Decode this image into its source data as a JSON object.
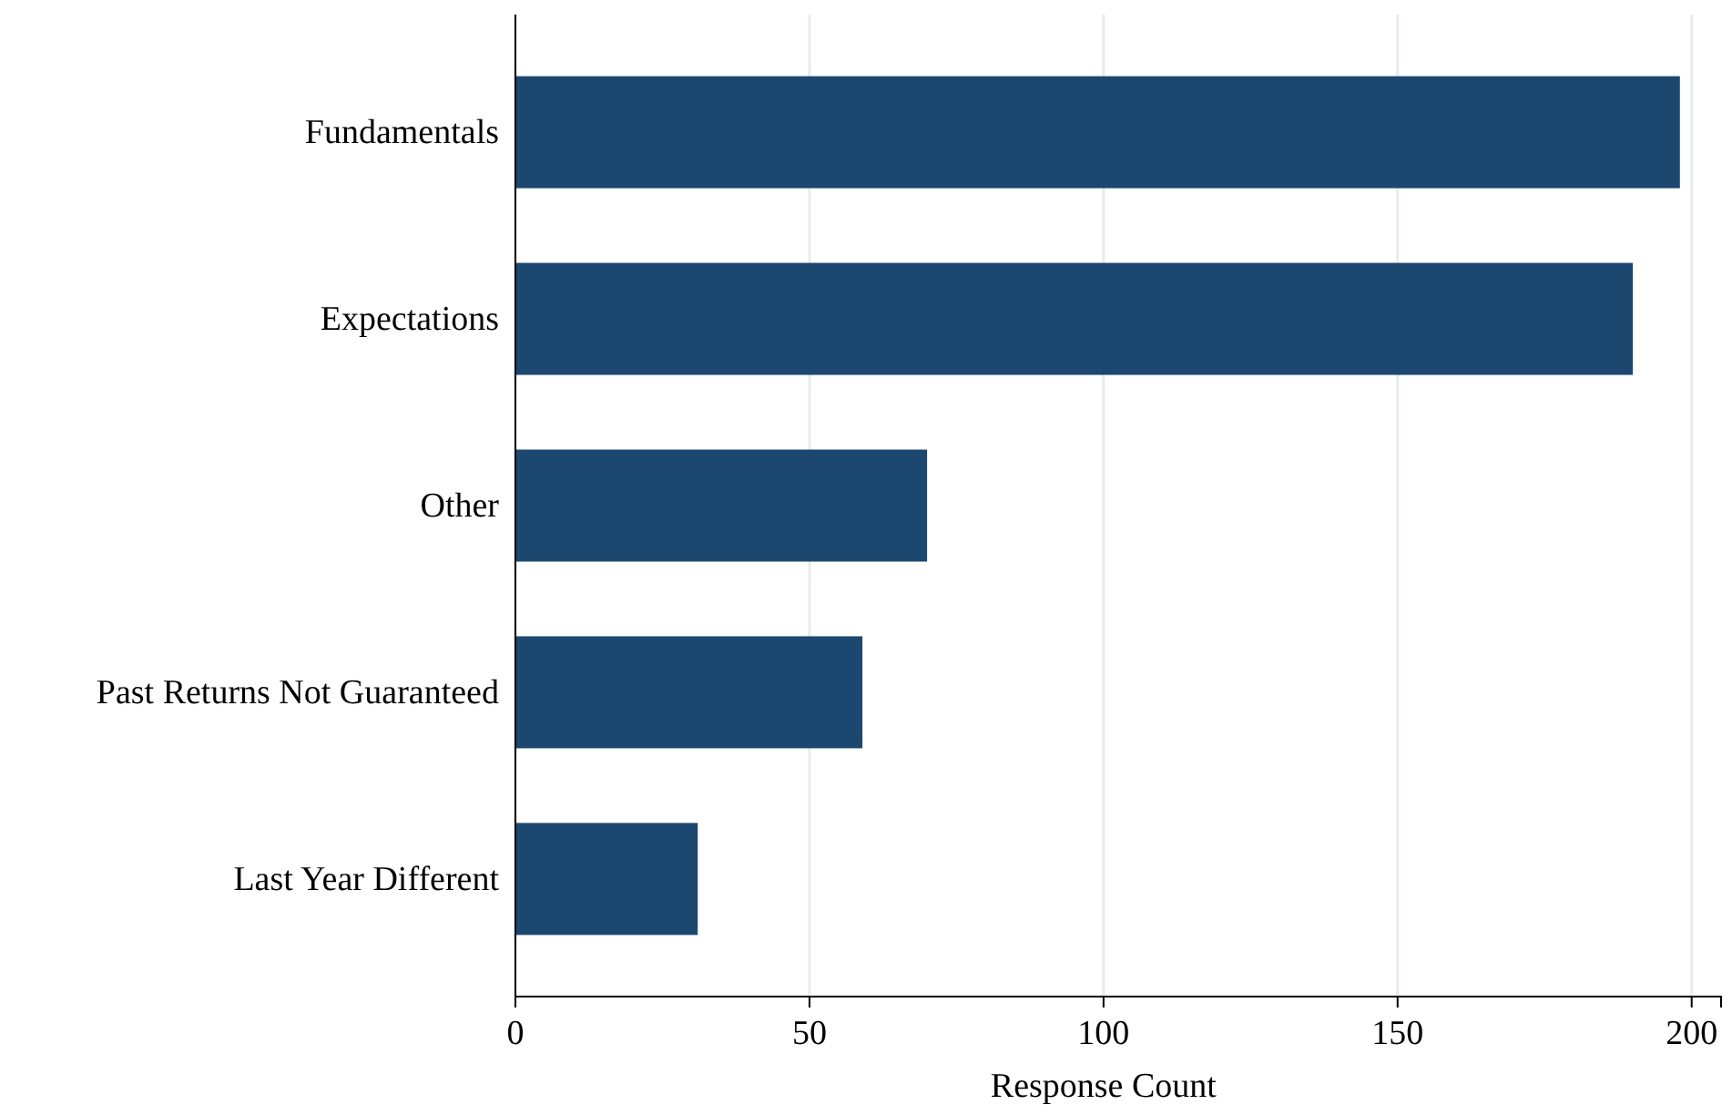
{
  "chart_data": {
    "type": "bar",
    "orientation": "horizontal",
    "xlabel": "Response Count",
    "categories": [
      "Fundamentals",
      "Expectations",
      "Other",
      "Past Returns Not Guaranteed",
      "Last Year Different"
    ],
    "values": [
      198,
      190,
      70,
      59,
      31
    ],
    "color": "#1c4870",
    "xlim": [
      0,
      205
    ],
    "xticks": [
      0,
      50,
      100,
      150,
      200
    ],
    "grid": "x"
  }
}
